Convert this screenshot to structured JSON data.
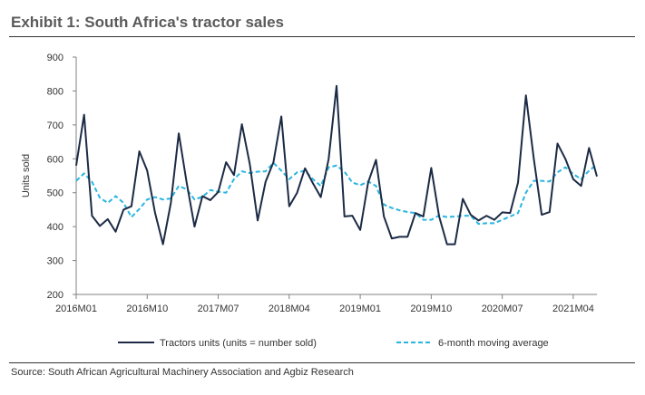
{
  "title": "Exhibit 1: South Africa's tractor sales",
  "source": "Source: South African Agricultural Machinery Association and Agbiz Research",
  "colors": {
    "series1": "#1c2b45",
    "series2": "#29b5e0",
    "axis": "#808080",
    "text": "#333333"
  },
  "chart_data": {
    "type": "line",
    "ylabel": "Units sold",
    "ylim": [
      200,
      900
    ],
    "yticks": [
      200,
      300,
      400,
      500,
      600,
      700,
      800,
      900
    ],
    "xtick_labels": [
      "2016M01",
      "2016M10",
      "2017M07",
      "2018M04",
      "2019M01",
      "2019M10",
      "2020M07",
      "2021M04"
    ],
    "xtick_indices": [
      0,
      9,
      18,
      27,
      36,
      45,
      54,
      63
    ],
    "legend_position": "bottom",
    "grid": false,
    "series": [
      {
        "name": "Tractors units (units = number sold)",
        "style": "solid",
        "values": [
          580,
          730,
          432,
          402,
          422,
          385,
          450,
          460,
          622,
          565,
          440,
          348,
          470,
          675,
          530,
          400,
          490,
          478,
          502,
          590,
          552,
          702,
          585,
          418,
          532,
          590,
          725,
          460,
          500,
          572,
          528,
          487,
          600,
          815,
          430,
          432,
          390,
          530,
          597,
          430,
          365,
          370,
          370,
          440,
          430,
          573,
          430,
          348,
          348,
          482,
          435,
          418,
          432,
          420,
          442,
          440,
          530,
          787,
          600,
          435,
          443,
          645,
          600,
          540,
          520,
          632,
          548
        ]
      },
      {
        "name": "6-month moving average",
        "style": "dashed",
        "values": [
          535,
          557,
          532,
          485,
          470,
          490,
          470,
          428,
          452,
          480,
          487,
          480,
          483,
          520,
          510,
          480,
          488,
          508,
          503,
          500,
          540,
          563,
          558,
          562,
          563,
          588,
          565,
          540,
          560,
          565,
          540,
          520,
          575,
          580,
          562,
          530,
          522,
          533,
          520,
          465,
          455,
          448,
          443,
          440,
          420,
          420,
          433,
          428,
          430,
          432,
          432,
          408,
          410,
          410,
          420,
          430,
          440,
          500,
          535,
          535,
          533,
          560,
          575,
          555,
          540,
          565,
          583
        ]
      }
    ]
  }
}
